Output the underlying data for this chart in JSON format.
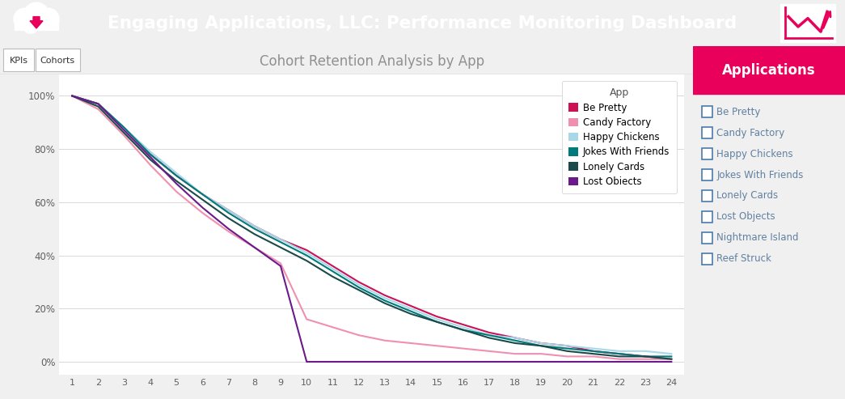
{
  "title": "Cohort Retention Analysis by App",
  "header_title": "Engaging Applications, LLC: Performance Monitoring Dashboard",
  "header_bg": "#E8005A",
  "header_text_color": "#FFFFFF",
  "tab_labels": [
    "KPIs",
    "Cohorts"
  ],
  "x_ticks": [
    1,
    2,
    3,
    4,
    5,
    6,
    7,
    8,
    9,
    10,
    11,
    12,
    13,
    14,
    15,
    16,
    17,
    18,
    19,
    20,
    21,
    22,
    23,
    24
  ],
  "y_ticks": [
    0.0,
    0.2,
    0.4,
    0.6,
    0.8,
    1.0
  ],
  "y_tick_labels": [
    "0%",
    "20%",
    "40%",
    "60%",
    "80%",
    "100%"
  ],
  "legend_title": "App",
  "apps_in_legend": [
    "Be Pretty",
    "Candy Factory",
    "Happy Chickens",
    "Jokes With Friends",
    "Lonely Cards",
    "Lost Obiects"
  ],
  "sidebar_title": "Applications",
  "sidebar_bg": "#E8005A",
  "sidebar_text_color": "#FFFFFF",
  "sidebar_apps": [
    "Be Pretty",
    "Candy Factory",
    "Happy Chickens",
    "Jokes With Friends",
    "Lonely Cards",
    "Lost Objects",
    "Nightmare Island",
    "Reef Struck"
  ],
  "lines": {
    "Be Pretty": {
      "color": "#CC1155",
      "data": [
        1.0,
        0.97,
        0.88,
        0.78,
        0.7,
        0.63,
        0.57,
        0.51,
        0.46,
        0.42,
        0.36,
        0.3,
        0.25,
        0.21,
        0.17,
        0.14,
        0.11,
        0.09,
        0.07,
        0.06,
        0.04,
        0.03,
        0.02,
        0.01
      ]
    },
    "Candy Factory": {
      "color": "#F090B0",
      "data": [
        1.0,
        0.95,
        0.85,
        0.74,
        0.64,
        0.56,
        0.49,
        0.43,
        0.37,
        0.16,
        0.13,
        0.1,
        0.08,
        0.07,
        0.06,
        0.05,
        0.04,
        0.03,
        0.03,
        0.02,
        0.02,
        0.01,
        0.01,
        0.01
      ]
    },
    "Happy Chickens": {
      "color": "#A8D8E8",
      "data": [
        1.0,
        0.97,
        0.88,
        0.79,
        0.71,
        0.63,
        0.57,
        0.51,
        0.46,
        0.41,
        0.35,
        0.29,
        0.24,
        0.2,
        0.16,
        0.13,
        0.1,
        0.09,
        0.07,
        0.06,
        0.05,
        0.04,
        0.04,
        0.03
      ]
    },
    "Jokes With Friends": {
      "color": "#007B7B",
      "data": [
        1.0,
        0.97,
        0.88,
        0.78,
        0.7,
        0.63,
        0.56,
        0.5,
        0.45,
        0.4,
        0.34,
        0.28,
        0.23,
        0.19,
        0.15,
        0.12,
        0.1,
        0.08,
        0.06,
        0.05,
        0.04,
        0.03,
        0.02,
        0.02
      ]
    },
    "Lonely Cards": {
      "color": "#1A4A4A",
      "data": [
        1.0,
        0.96,
        0.86,
        0.76,
        0.68,
        0.61,
        0.54,
        0.48,
        0.43,
        0.38,
        0.32,
        0.27,
        0.22,
        0.18,
        0.15,
        0.12,
        0.09,
        0.07,
        0.06,
        0.04,
        0.03,
        0.02,
        0.02,
        0.01
      ]
    },
    "Lost Obiects": {
      "color": "#6A1A8A",
      "data": [
        1.0,
        0.97,
        0.87,
        0.77,
        0.67,
        0.58,
        0.5,
        0.43,
        0.36,
        0.0,
        0.0,
        0.0,
        0.0,
        0.0,
        0.0,
        0.0,
        0.0,
        0.0,
        0.0,
        0.0,
        0.0,
        0.0,
        0.0,
        0.0
      ]
    }
  },
  "plot_bg": "#FFFFFF",
  "grid_color": "#D8D8D8",
  "title_color": "#909090",
  "axis_text_color": "#606060",
  "fig_bg": "#F0F0F0",
  "tab_bg": "#F0F0F0",
  "tab_border": "#CCCCCC",
  "sidebar_item_color": "#6080A0"
}
